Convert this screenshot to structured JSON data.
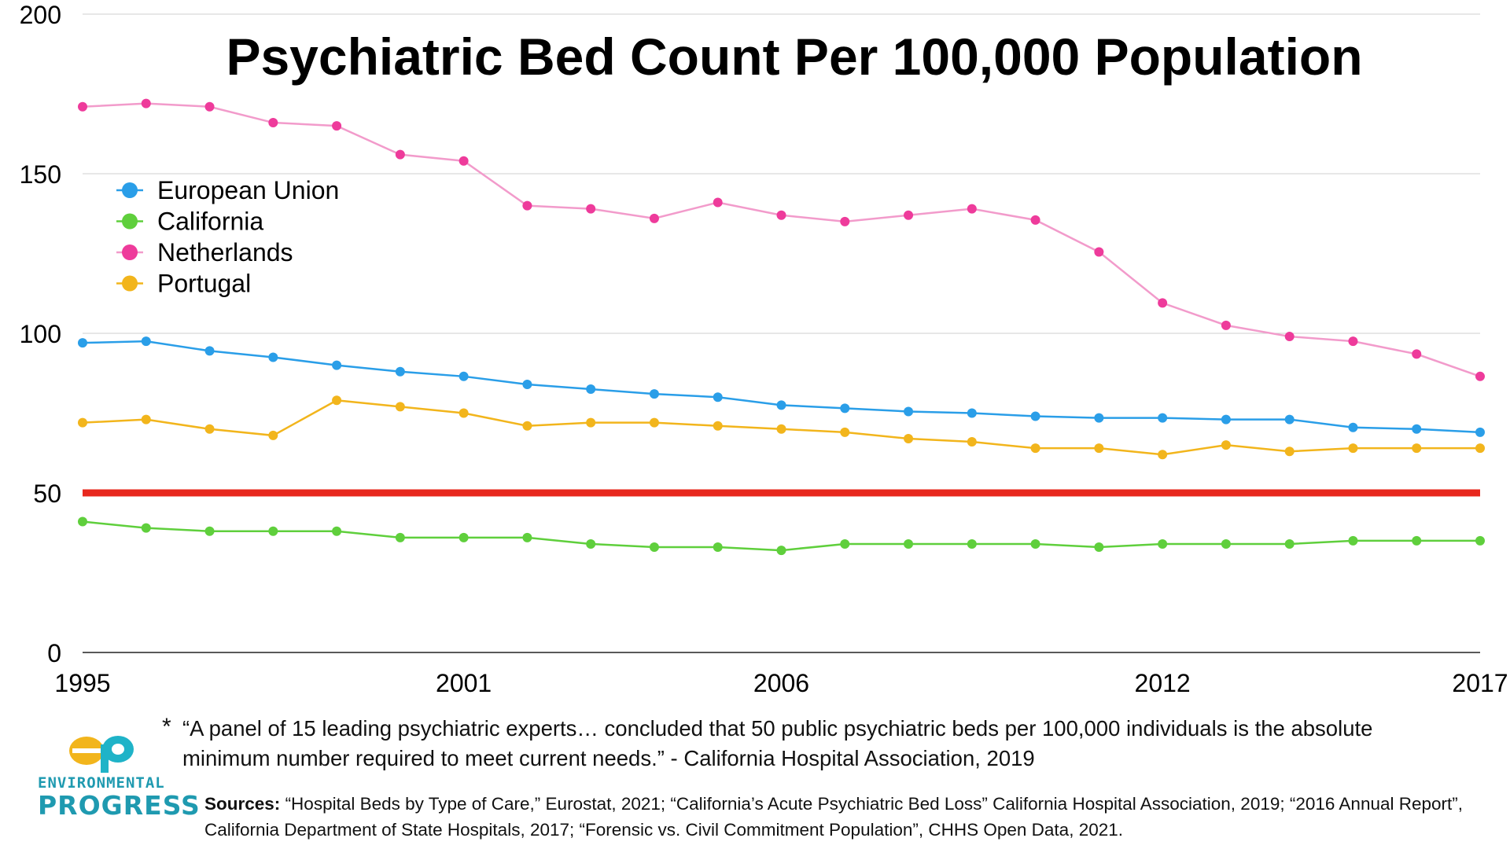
{
  "chart_data": {
    "type": "line",
    "title": "Psychiatric Bed Count Per 100,000 Population",
    "xlabel": "",
    "ylabel": "",
    "xlim": [
      1995,
      2017
    ],
    "ylim": [
      0,
      200
    ],
    "x_ticks": [
      "1995",
      "2001",
      "2006",
      "2012",
      "2017"
    ],
    "y_ticks": [
      "0",
      "50",
      "100",
      "150",
      "200"
    ],
    "grid": "horizontal",
    "legend_position": "top-left",
    "x": [
      1995,
      1996,
      1997,
      1998,
      1999,
      2000,
      2001,
      2002,
      2003,
      2004,
      2005,
      2006,
      2007,
      2008,
      2009,
      2010,
      2011,
      2012,
      2013,
      2014,
      2015,
      2016,
      2017
    ],
    "series": [
      {
        "name": "European Union",
        "color": "#2a9ee8",
        "values": [
          97,
          97.5,
          94.5,
          92.5,
          90,
          88,
          86.5,
          84,
          82.5,
          81,
          80,
          77.5,
          76.5,
          75.5,
          75,
          74,
          73.5,
          73.5,
          73,
          73,
          70.5,
          70,
          69
        ]
      },
      {
        "name": "California",
        "color": "#5fcf3c",
        "values": [
          41,
          39,
          38,
          38,
          38,
          36,
          36,
          36,
          34,
          33,
          33,
          32,
          34,
          34,
          34,
          34,
          33,
          34,
          34,
          34,
          35,
          35,
          35
        ]
      },
      {
        "name": "Netherlands",
        "color": "#ee3b9b",
        "line_color": "#f29bcb",
        "values": [
          171,
          172,
          171,
          166,
          165,
          156,
          154,
          140,
          139,
          136,
          141,
          137,
          135,
          137,
          139,
          135.5,
          125.5,
          109.5,
          102.5,
          99,
          97.5,
          93.5,
          86.5
        ]
      },
      {
        "name": "Portugal",
        "color": "#f2b51c",
        "values": [
          72,
          73,
          70,
          68,
          79,
          77,
          75,
          71,
          72,
          72,
          71,
          70,
          69,
          67,
          66,
          64,
          64,
          62,
          65,
          63,
          64,
          64,
          64
        ]
      }
    ],
    "reference_line": {
      "value": 50,
      "color": "#e8281e"
    }
  },
  "footnote": {
    "marker": "*",
    "text": "“A panel of 15 leading psychiatric experts… concluded that 50 public psychiatric beds per 100,000 individuals is the absolute minimum number required to meet current needs.” - California Hospital Association, 2019"
  },
  "sources": {
    "label": "Sources:",
    "text": "“Hospital Beds by Type of Care,” Eurostat, 2021; “California’s Acute Psychiatric Bed Loss” California Hospital Association, 2019; “2016 Annual Report”, California Department of State Hospitals, 2017; “Forensic vs. Civil Commitment Population”, CHHS Open Data, 2021."
  },
  "logo": {
    "line1": "ENVIRONMENTAL",
    "line2": "PROGRESS",
    "mark_colors": [
      "#f2b51c",
      "#1fb3c8"
    ]
  }
}
